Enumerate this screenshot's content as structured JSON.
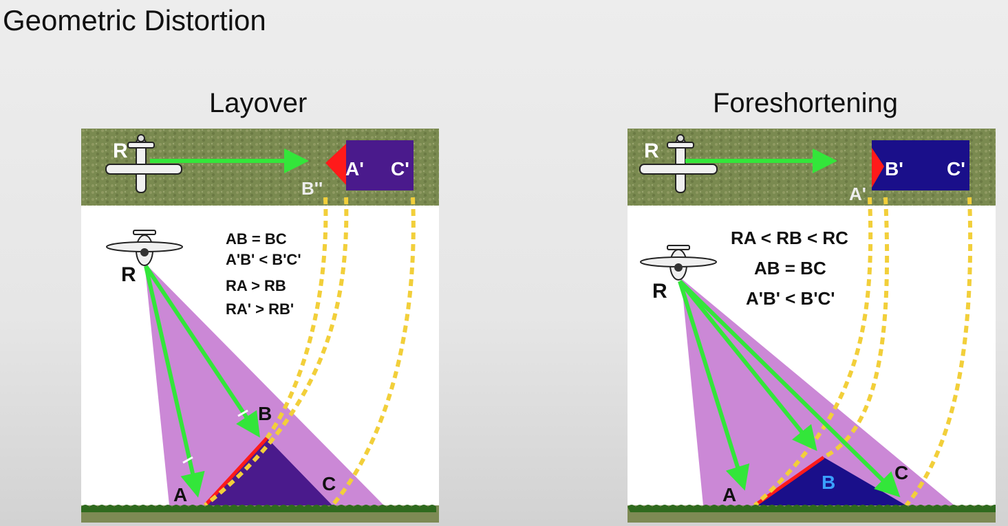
{
  "title": "Geometric Distortion",
  "colors": {
    "ground_strip": "#7d8a54",
    "beam": "#c57bd2",
    "target": "#4a1a8c",
    "target_fore": "#1a0f8a",
    "arrow": "#33e63a",
    "dashes": "#f2cf3a",
    "red": "#ff1a1a",
    "grass": "#2f6a1e"
  },
  "panels": {
    "layover": {
      "subtitle": "Layover",
      "top_labels": {
        "r": "R",
        "a": "A'",
        "c": "C'",
        "b": "B''"
      },
      "equations": [
        "AB = BC",
        "A'B' < B'C'",
        "RA > RB",
        "RA' > RB'"
      ],
      "plane_label": "R",
      "ground_labels": {
        "a": "A",
        "b": "B",
        "c": "C"
      }
    },
    "foreshortening": {
      "subtitle": "Foreshortening",
      "top_labels": {
        "r": "R",
        "b": "B'",
        "c": "C'",
        "a": "A'"
      },
      "equations": [
        "RA < RB < RC",
        "AB = BC",
        "A'B' < B'C'"
      ],
      "plane_label": "R",
      "ground_labels": {
        "a": "A",
        "b": "B",
        "c": "C"
      }
    }
  }
}
